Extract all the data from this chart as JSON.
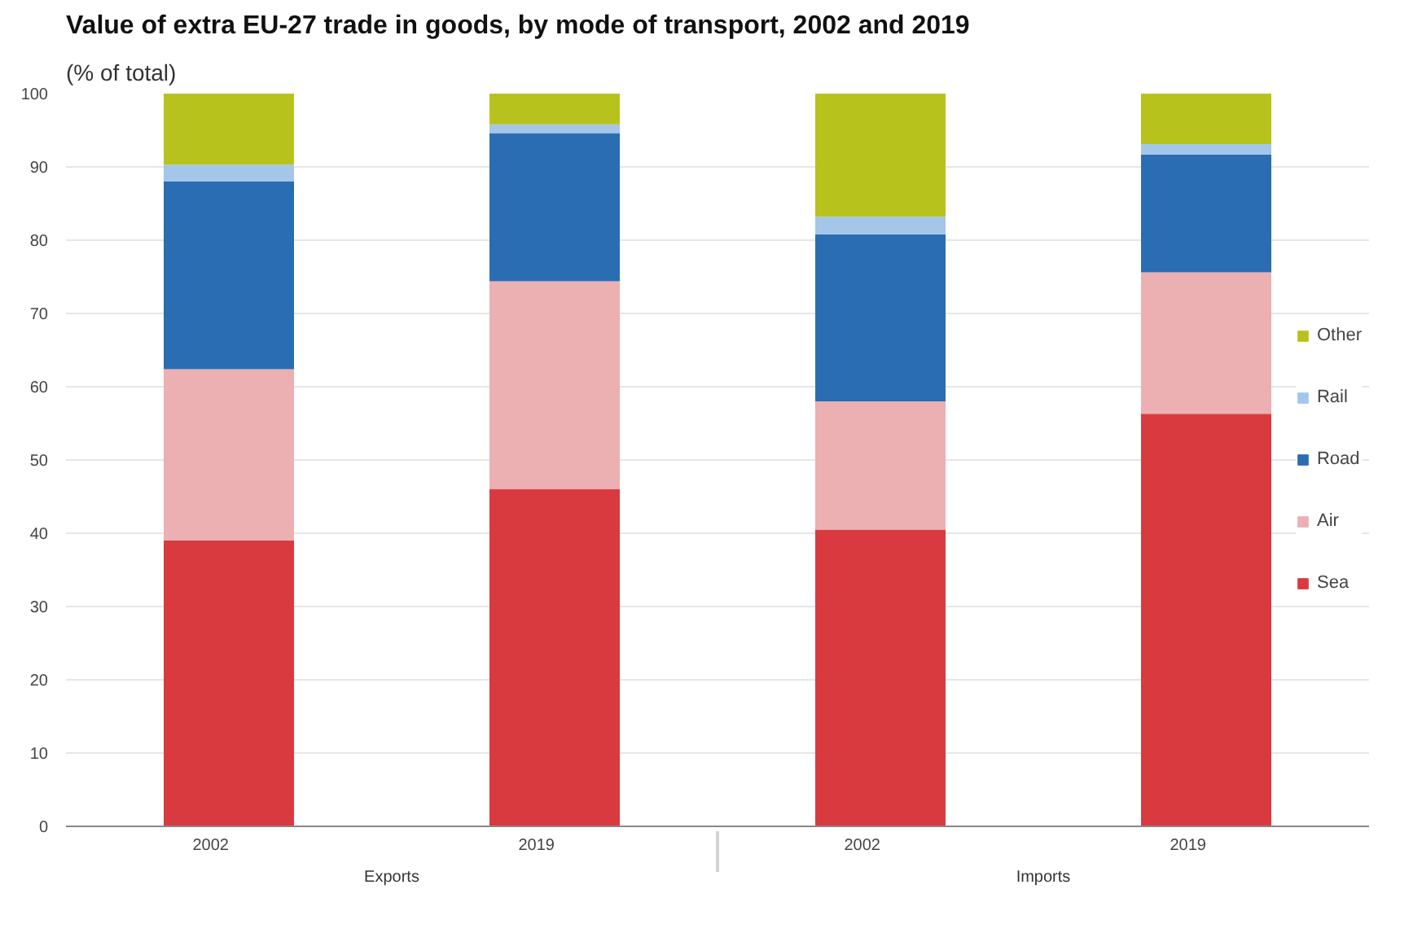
{
  "chart_data": {
    "type": "bar",
    "stacked": true,
    "title": "Value of extra EU-27 trade in goods, by mode of transport, 2002 and 2019",
    "subtitle": "(% of total)",
    "categories": [
      "2002",
      "2019",
      "2002",
      "2019"
    ],
    "series": [
      {
        "name": "Sea",
        "color": "#d93a3f",
        "values": [
          39,
          46,
          40.5,
          56.3
        ]
      },
      {
        "name": "Air",
        "color": "#ecafb2",
        "values": [
          23.4,
          28.4,
          17.5,
          19.3
        ]
      },
      {
        "name": "Road",
        "color": "#2a6db3",
        "values": [
          25.6,
          20.2,
          22.8,
          16.1
        ]
      },
      {
        "name": "Rail",
        "color": "#a3c6ea",
        "values": [
          2.3,
          1.2,
          2.4,
          1.4
        ]
      },
      {
        "name": "Other",
        "color": "#b8c21d",
        "values": [
          9.7,
          4.2,
          16.8,
          6.9
        ]
      }
    ],
    "annotations": [
      "Exports",
      "Imports"
    ],
    "ylim": [
      0,
      100
    ],
    "yticks": [
      0,
      10,
      20,
      30,
      40,
      50,
      60,
      70,
      80,
      90,
      100
    ],
    "grid": "y",
    "legend": "right"
  }
}
